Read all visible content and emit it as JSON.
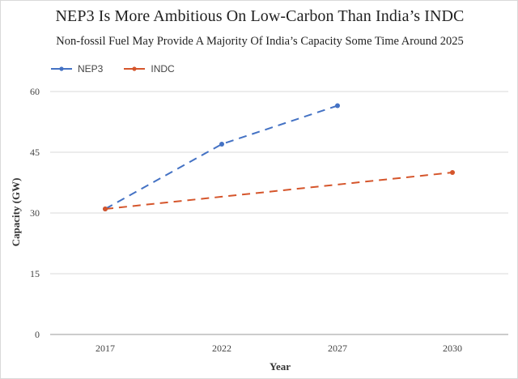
{
  "chart_data": {
    "type": "line",
    "title": "NEP3 Is More Ambitious On Low-Carbon Than India’s INDC",
    "subtitle": "Non-fossil  Fuel  May Provide A Majority Of India’s Capacity Some Time Around 2025",
    "xlabel": "Year",
    "ylabel": "Capacity (GW)",
    "categories": [
      "2017",
      "2022",
      "2027",
      "2030"
    ],
    "yticks": [
      0,
      15,
      30,
      45,
      60
    ],
    "ylim": [
      0,
      60
    ],
    "grid": true,
    "legend_position": "top-left",
    "series": [
      {
        "name": "NEP3",
        "color": "#4472c4",
        "dash": true,
        "points": [
          {
            "x": "2017",
            "y": 31
          },
          {
            "x": "2022",
            "y": 47
          },
          {
            "x": "2027",
            "y": 56.5
          }
        ]
      },
      {
        "name": "INDC",
        "color": "#d5552b",
        "dash": true,
        "points": [
          {
            "x": "2017",
            "y": 31
          },
          {
            "x": "2030",
            "y": 40
          }
        ]
      }
    ]
  }
}
